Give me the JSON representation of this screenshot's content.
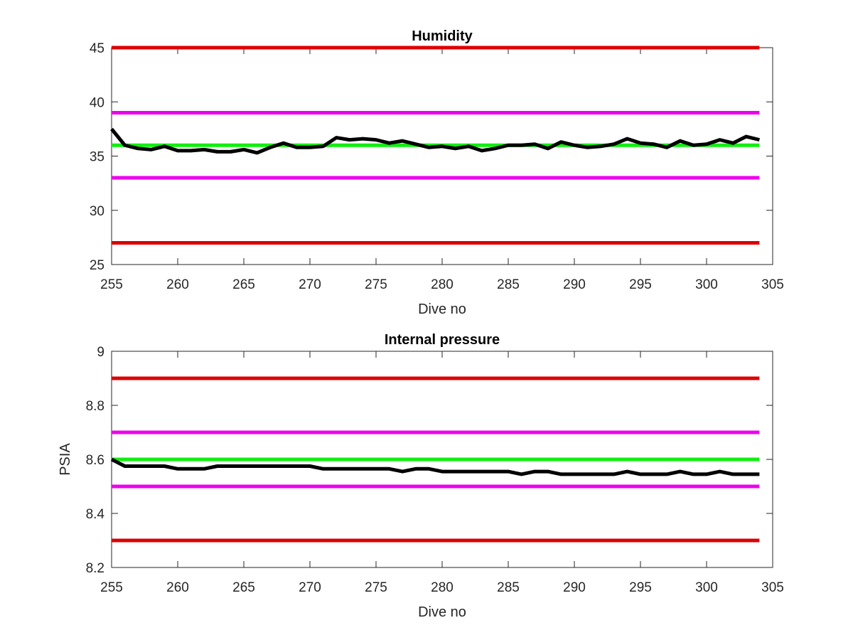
{
  "chart_data": [
    {
      "type": "line",
      "title": "Humidity",
      "xlabel": "Dive no",
      "ylabel": "",
      "xlim": [
        255,
        305
      ],
      "ylim": [
        25,
        45
      ],
      "xticks": [
        255,
        260,
        265,
        270,
        275,
        280,
        285,
        290,
        295,
        300,
        305
      ],
      "yticks": [
        25,
        30,
        35,
        40,
        45
      ],
      "grid": false,
      "limit_lines": [
        {
          "y": 45,
          "color": "#dd0000",
          "x": [
            255,
            304
          ]
        },
        {
          "y": 39,
          "color": "#ee00ee",
          "x": [
            255,
            304
          ]
        },
        {
          "y": 36,
          "color": "#11ee11",
          "x": [
            255,
            304
          ]
        },
        {
          "y": 33,
          "color": "#ee00ee",
          "x": [
            255,
            304
          ]
        },
        {
          "y": 27,
          "color": "#dd0000",
          "x": [
            255,
            304
          ]
        }
      ],
      "series": [
        {
          "color": "#000000",
          "x": [
            255,
            256,
            257,
            258,
            259,
            260,
            261,
            262,
            263,
            264,
            265,
            266,
            267,
            268,
            269,
            270,
            271,
            272,
            273,
            274,
            275,
            276,
            277,
            278,
            279,
            280,
            281,
            282,
            283,
            284,
            285,
            286,
            287,
            288,
            289,
            290,
            291,
            292,
            293,
            294,
            295,
            296,
            297,
            298,
            299,
            300,
            301,
            302,
            303,
            304
          ],
          "values": [
            37.5,
            36.0,
            35.7,
            35.6,
            35.9,
            35.5,
            35.5,
            35.6,
            35.4,
            35.4,
            35.6,
            35.3,
            35.8,
            36.2,
            35.8,
            35.8,
            35.9,
            36.7,
            36.5,
            36.6,
            36.5,
            36.2,
            36.4,
            36.1,
            35.8,
            35.9,
            35.7,
            35.9,
            35.5,
            35.7,
            36.0,
            36.0,
            36.1,
            35.7,
            36.3,
            36.0,
            35.8,
            35.9,
            36.1,
            36.6,
            36.2,
            36.1,
            35.8,
            36.4,
            36.0,
            36.1,
            36.5,
            36.2,
            36.8,
            36.5
          ]
        }
      ]
    },
    {
      "type": "line",
      "title": "Internal pressure",
      "xlabel": "Dive no",
      "ylabel": "PSIA",
      "xlim": [
        255,
        305
      ],
      "ylim": [
        8.2,
        9
      ],
      "xticks": [
        255,
        260,
        265,
        270,
        275,
        280,
        285,
        290,
        295,
        300,
        305
      ],
      "yticks": [
        8.2,
        8.4,
        8.6,
        8.8,
        9
      ],
      "ytick_labels": [
        "8.2",
        "8.4",
        "8.6",
        "8.8",
        "9"
      ],
      "grid": false,
      "limit_lines": [
        {
          "y": 8.9,
          "color": "#dd0000",
          "x": [
            255,
            304
          ]
        },
        {
          "y": 8.7,
          "color": "#ee00ee",
          "x": [
            255,
            304
          ]
        },
        {
          "y": 8.6,
          "color": "#11ee11",
          "x": [
            255,
            304
          ]
        },
        {
          "y": 8.5,
          "color": "#ee00ee",
          "x": [
            255,
            304
          ]
        },
        {
          "y": 8.3,
          "color": "#dd0000",
          "x": [
            255,
            304
          ]
        }
      ],
      "series": [
        {
          "color": "#000000",
          "x": [
            255,
            256,
            257,
            258,
            259,
            260,
            261,
            262,
            263,
            264,
            265,
            266,
            267,
            268,
            269,
            270,
            271,
            272,
            273,
            274,
            275,
            276,
            277,
            278,
            279,
            280,
            281,
            282,
            283,
            284,
            285,
            286,
            287,
            288,
            289,
            290,
            291,
            292,
            293,
            294,
            295,
            296,
            297,
            298,
            299,
            300,
            301,
            302,
            303,
            304
          ],
          "values": [
            8.6,
            8.575,
            8.575,
            8.575,
            8.575,
            8.565,
            8.565,
            8.565,
            8.575,
            8.575,
            8.575,
            8.575,
            8.575,
            8.575,
            8.575,
            8.575,
            8.565,
            8.565,
            8.565,
            8.565,
            8.565,
            8.565,
            8.555,
            8.565,
            8.565,
            8.555,
            8.555,
            8.555,
            8.555,
            8.555,
            8.555,
            8.545,
            8.555,
            8.555,
            8.545,
            8.545,
            8.545,
            8.545,
            8.545,
            8.555,
            8.545,
            8.545,
            8.545,
            8.555,
            8.545,
            8.545,
            8.555,
            8.545,
            8.545,
            8.545
          ]
        }
      ]
    }
  ]
}
